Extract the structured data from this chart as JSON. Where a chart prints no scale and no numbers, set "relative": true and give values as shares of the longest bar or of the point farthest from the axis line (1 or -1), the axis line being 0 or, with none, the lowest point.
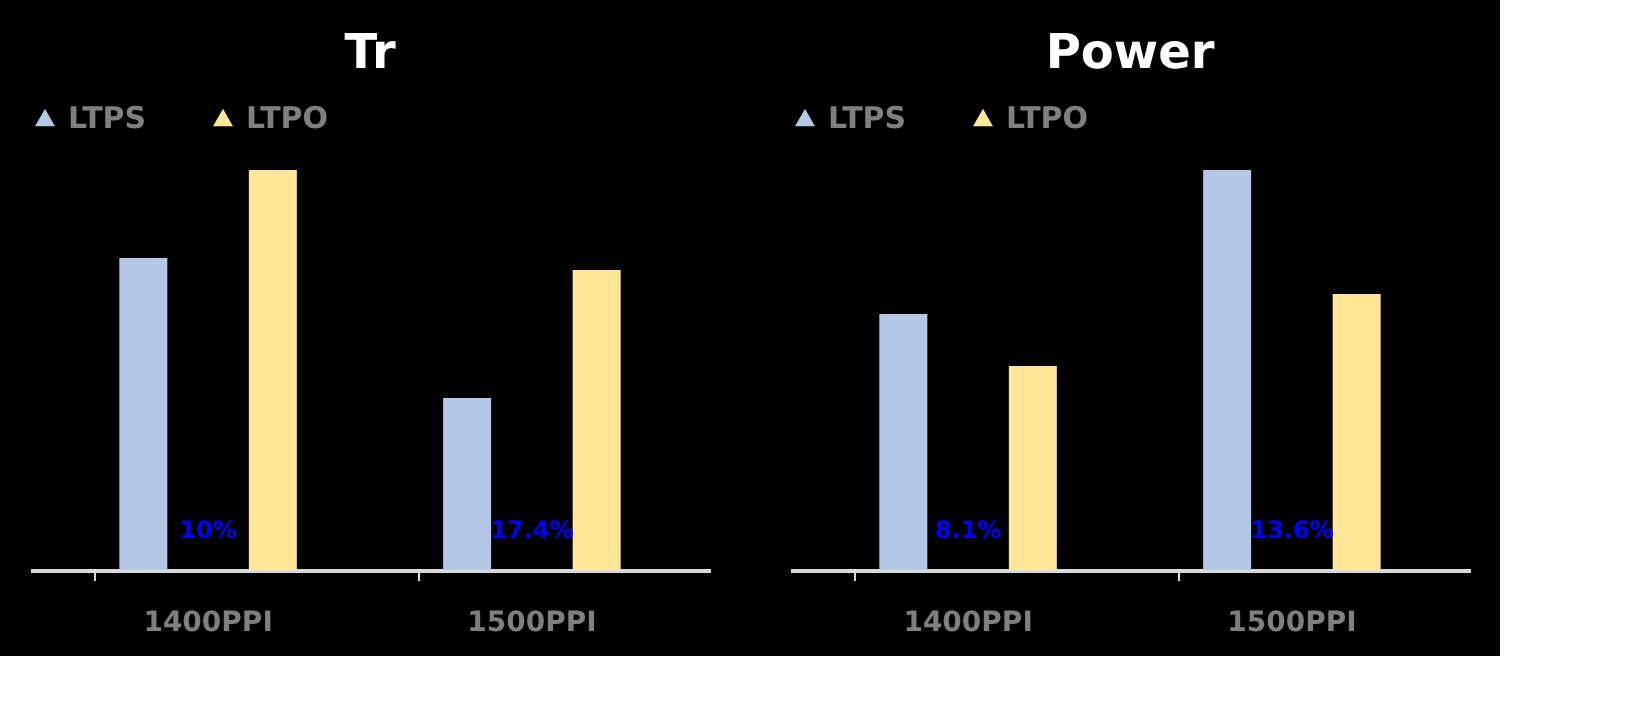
{
  "chart_data": [
    {
      "type": "bar",
      "title": "Tr",
      "categories": [
        "1400PPI",
        "1500PPI"
      ],
      "relative": true,
      "legend": "top",
      "series": [
        {
          "name": "LTPS",
          "color": "#b4c7e7",
          "values": [
            0.78,
            0.43
          ]
        },
        {
          "name": "LTPO",
          "color": "#ffe699",
          "values": [
            1,
            0.75
          ]
        }
      ],
      "annotations": [
        "10%",
        "17.4%"
      ]
    },
    {
      "type": "bar",
      "title": "Power",
      "categories": [
        "1400PPI",
        "1500PPI"
      ],
      "relative": true,
      "legend": "top",
      "series": [
        {
          "name": "LTPS",
          "color": "#b4c7e7",
          "values": [
            0.64,
            1
          ]
        },
        {
          "name": "LTPO",
          "color": "#ffe699",
          "values": [
            0.51,
            0.69
          ]
        }
      ],
      "annotations": [
        "8.1%",
        "13.6%"
      ]
    }
  ]
}
